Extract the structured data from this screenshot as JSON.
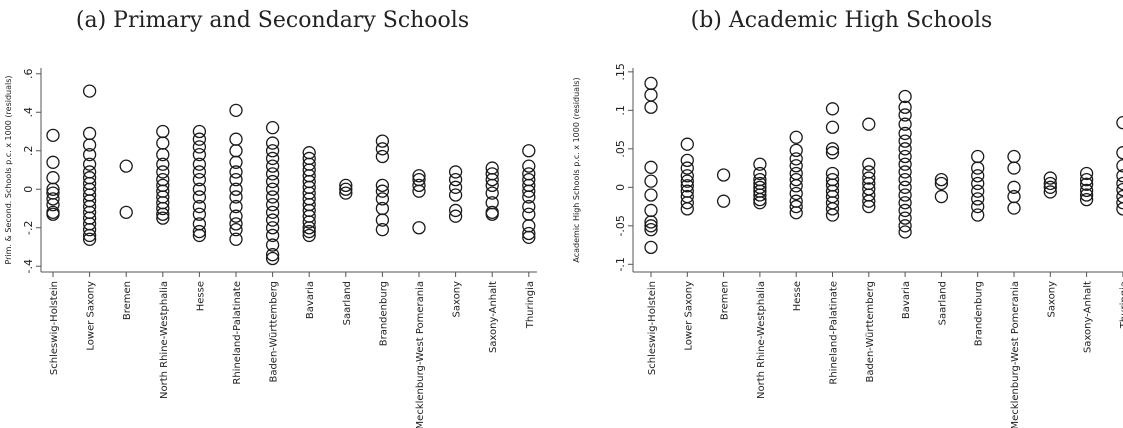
{
  "chart_data": [
    {
      "type": "scatter",
      "title": "(a) Primary and Secondary Schools",
      "ylabel": "Prim. & Second. Schools p.c. x 1000 (residuals)",
      "ylim": [
        -0.43,
        0.63
      ],
      "yticks": [
        {
          "v": -0.4,
          "label": "-.4"
        },
        {
          "v": -0.2,
          "label": "-.2"
        },
        {
          "v": 0,
          "label": "0"
        },
        {
          "v": 0.2,
          "label": ".2"
        },
        {
          "v": 0.4,
          "label": ".4"
        },
        {
          "v": 0.6,
          "label": ".6"
        }
      ],
      "categories": [
        "Schleswig-Holstein",
        "Lower Saxony",
        "Bremen",
        "North Rhine-Westphalia",
        "Hesse",
        "Rhineland-Palatinate",
        "Baden-Württemberg",
        "Bavaria",
        "Saarland",
        "Brandenburg",
        "Mecklenburg-West Pomerania",
        "Saxony",
        "Saxony-Anhalt",
        "Thuringia"
      ],
      "points": [
        [
          0.28,
          0.14,
          0.06,
          0.0,
          -0.02,
          -0.05,
          -0.08,
          -0.12,
          -0.13
        ],
        [
          0.51,
          0.29,
          0.23,
          0.18,
          0.13,
          0.09,
          0.06,
          0.03,
          0.0,
          -0.03,
          -0.06,
          -0.09,
          -0.12,
          -0.15,
          -0.18,
          -0.21,
          -0.24,
          -0.26
        ],
        [
          0.12,
          -0.12
        ],
        [
          0.3,
          0.24,
          0.18,
          0.13,
          0.09,
          0.05,
          0.02,
          -0.01,
          -0.04,
          -0.07,
          -0.1,
          -0.13,
          -0.15
        ],
        [
          0.3,
          0.26,
          0.22,
          0.18,
          0.13,
          0.09,
          0.05,
          0.0,
          -0.04,
          -0.09,
          -0.13,
          -0.18,
          -0.22,
          -0.24
        ],
        [
          0.41,
          0.26,
          0.2,
          0.14,
          0.09,
          0.05,
          0.0,
          -0.04,
          -0.09,
          -0.14,
          -0.18,
          -0.21,
          -0.26
        ],
        [
          0.32,
          0.24,
          0.2,
          0.16,
          0.12,
          0.08,
          0.04,
          0.0,
          -0.04,
          -0.08,
          -0.12,
          -0.16,
          -0.2,
          -0.24,
          -0.29,
          -0.34,
          -0.36
        ],
        [
          0.19,
          0.16,
          0.13,
          0.1,
          0.07,
          0.04,
          0.01,
          -0.02,
          -0.05,
          -0.08,
          -0.11,
          -0.14,
          -0.17,
          -0.2,
          -0.22,
          -0.24
        ],
        [
          0.02,
          0.0,
          -0.02
        ],
        [
          0.25,
          0.21,
          0.17,
          0.02,
          -0.01,
          -0.05,
          -0.1,
          -0.16,
          -0.21
        ],
        [
          0.07,
          0.05,
          0.02,
          -0.01,
          -0.2
        ],
        [
          0.09,
          0.05,
          0.01,
          -0.03,
          -0.11,
          -0.14
        ],
        [
          0.11,
          0.08,
          0.05,
          0.02,
          -0.02,
          -0.07,
          -0.12,
          -0.13
        ],
        [
          0.2,
          0.12,
          0.08,
          0.05,
          0.02,
          -0.01,
          -0.04,
          -0.09,
          -0.13,
          -0.19,
          -0.23,
          -0.25
        ]
      ]
    },
    {
      "type": "scatter",
      "title": "(b) Academic High Schools",
      "ylabel": "Academic High Schools p.c. x 1000 (residuals)",
      "ylim": [
        -0.11,
        0.155
      ],
      "yticks": [
        {
          "v": -0.1,
          "label": "-.1"
        },
        {
          "v": -0.05,
          "label": "-.05"
        },
        {
          "v": 0,
          "label": "0"
        },
        {
          "v": 0.05,
          "label": ".05"
        },
        {
          "v": 0.1,
          "label": ".1"
        },
        {
          "v": 0.15,
          "label": ".15"
        }
      ],
      "categories": [
        "Schleswig-Holstein",
        "Lower Saxony",
        "Bremen",
        "North Rhine-Westphalia",
        "Hesse",
        "Rhineland-Palatinate",
        "Baden-Württemberg",
        "Bavaria",
        "Saarland",
        "Brandenburg",
        "Mecklenburg-West Pomerania",
        "Saxony",
        "Saxony-Anhalt",
        "Thuringia"
      ],
      "points": [
        [
          0.135,
          0.12,
          0.104,
          0.026,
          0.008,
          -0.01,
          -0.03,
          -0.045,
          -0.05,
          -0.055,
          -0.078
        ],
        [
          0.056,
          0.035,
          0.025,
          0.015,
          0.008,
          0.002,
          -0.005,
          -0.012,
          -0.02,
          -0.028
        ],
        [
          0.016,
          -0.018
        ],
        [
          0.03,
          0.018,
          0.01,
          0.005,
          0.0,
          -0.005,
          -0.01,
          -0.016,
          -0.02
        ],
        [
          0.065,
          0.048,
          0.037,
          0.028,
          0.018,
          0.01,
          0.002,
          -0.008,
          -0.018,
          -0.025,
          -0.033
        ],
        [
          0.102,
          0.078,
          0.05,
          0.045,
          0.018,
          0.01,
          0.003,
          -0.005,
          -0.012,
          -0.02,
          -0.028,
          -0.036
        ],
        [
          0.082,
          0.03,
          0.02,
          0.012,
          0.005,
          -0.002,
          -0.01,
          -0.018,
          -0.025
        ],
        [
          0.118,
          0.104,
          0.094,
          0.082,
          0.07,
          0.06,
          0.05,
          0.04,
          0.03,
          0.02,
          0.01,
          0.0,
          -0.01,
          -0.02,
          -0.03,
          -0.04,
          -0.05,
          -0.058
        ],
        [
          0.01,
          0.005,
          -0.012
        ],
        [
          0.04,
          0.025,
          0.015,
          0.005,
          -0.005,
          -0.015,
          -0.025,
          -0.036
        ],
        [
          0.04,
          0.025,
          0.0,
          -0.012,
          -0.027
        ],
        [
          0.012,
          0.005,
          0.0,
          -0.006
        ],
        [
          0.018,
          0.01,
          0.004,
          -0.004,
          -0.01,
          -0.016
        ],
        [
          0.084,
          0.045,
          0.028,
          0.015,
          0.005,
          -0.003,
          -0.012,
          -0.02,
          -0.028
        ]
      ]
    }
  ]
}
